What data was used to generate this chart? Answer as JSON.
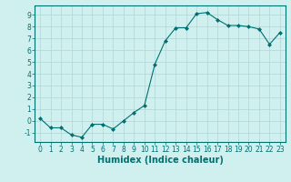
{
  "title": "",
  "xlabel": "Humidex (Indice chaleur)",
  "ylabel": "",
  "x": [
    0,
    1,
    2,
    3,
    4,
    5,
    6,
    7,
    8,
    9,
    10,
    11,
    12,
    13,
    14,
    15,
    16,
    17,
    18,
    19,
    20,
    21,
    22,
    23
  ],
  "y": [
    0.2,
    -0.6,
    -0.6,
    -1.2,
    -1.4,
    -0.3,
    -0.3,
    -0.7,
    0.0,
    0.7,
    1.3,
    4.8,
    6.8,
    7.9,
    7.9,
    9.1,
    9.2,
    8.6,
    8.1,
    8.1,
    8.0,
    7.8,
    6.5,
    7.5
  ],
  "line_color": "#007070",
  "marker": "D",
  "marker_size": 2.0,
  "background_color": "#d0f0f0",
  "grid_color": "#b0d5d5",
  "ylim": [
    -1.8,
    9.8
  ],
  "xlim": [
    -0.5,
    23.5
  ],
  "yticks": [
    -1,
    0,
    1,
    2,
    3,
    4,
    5,
    6,
    7,
    8,
    9
  ],
  "xticks": [
    0,
    1,
    2,
    3,
    4,
    5,
    6,
    7,
    8,
    9,
    10,
    11,
    12,
    13,
    14,
    15,
    16,
    17,
    18,
    19,
    20,
    21,
    22,
    23
  ],
  "tick_fontsize": 5.5,
  "xlabel_fontsize": 7.0,
  "spine_color": "#007070",
  "line_width": 0.8
}
